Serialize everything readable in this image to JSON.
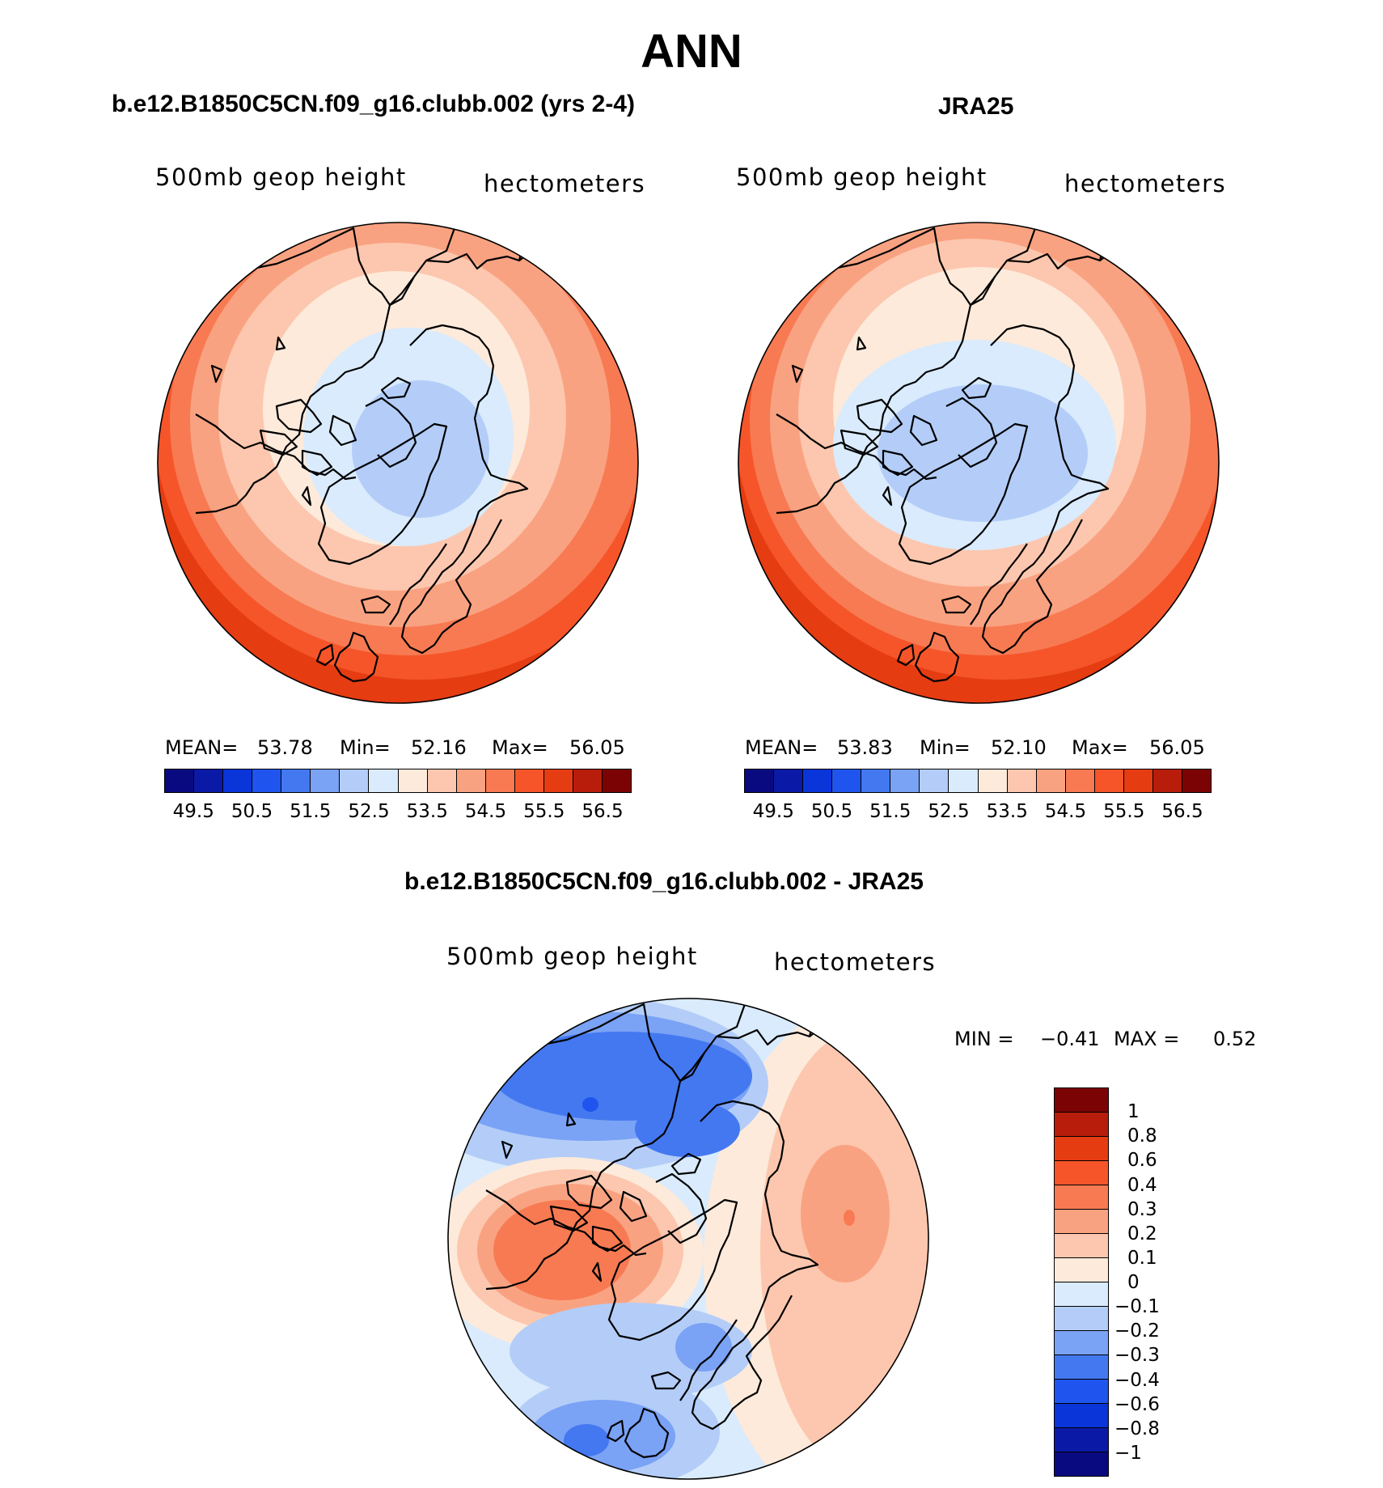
{
  "title": "ANN",
  "colors": {
    "abs_palette": [
      "#0a0a80",
      "#0b1aa6",
      "#0a35d9",
      "#1f55ee",
      "#4378f0",
      "#7aa2f5",
      "#b3cdf8",
      "#d9ebfc",
      "#fdeadb",
      "#fcc7ae",
      "#f9a281",
      "#f77a52",
      "#f6552a",
      "#e53c12",
      "#b81d0c",
      "#7c0303"
    ],
    "diff_palette": [
      "#7c0303",
      "#b81d0c",
      "#e53c12",
      "#f6552a",
      "#f77a52",
      "#f9a281",
      "#fcc7ae",
      "#fdeadb",
      "#d9ebfc",
      "#b3cdf8",
      "#7aa2f5",
      "#4378f0",
      "#1f55ee",
      "#0a35d9",
      "#0b1aa6",
      "#0a0a80"
    ]
  },
  "panels": {
    "model": {
      "title": "b.e12.B1850C5CN.f09_g16.clubb.002 (yrs 2-4)",
      "variable": "500mb geop height",
      "units": "hectometers",
      "mean_label": "MEAN=",
      "mean": "53.78",
      "min_label": "Min=",
      "min": "52.16",
      "max_label": "Max=",
      "max": "56.05",
      "ticks": [
        "49.5",
        "50.5",
        "51.5",
        "52.5",
        "53.5",
        "54.5",
        "55.5",
        "56.5"
      ]
    },
    "obs": {
      "title": "JRA25",
      "variable": "500mb geop height",
      "units": "hectometers",
      "mean_label": "MEAN=",
      "mean": "53.83",
      "min_label": "Min=",
      "min": "52.10",
      "max_label": "Max=",
      "max": "56.05",
      "ticks": [
        "49.5",
        "50.5",
        "51.5",
        "52.5",
        "53.5",
        "54.5",
        "55.5",
        "56.5"
      ]
    },
    "diff": {
      "title": "b.e12.B1850C5CN.f09_g16.clubb.002 - JRA25",
      "variable": "500mb geop height",
      "units": "hectometers",
      "min_label": "MIN =",
      "min": "−0.41",
      "max_label": "MAX =",
      "max": "0.52",
      "ticks": [
        "1",
        "0.8",
        "0.6",
        "0.4",
        "0.3",
        "0.2",
        "0.1",
        "0",
        "−0.1",
        "−0.2",
        "−0.3",
        "−0.4",
        "−0.6",
        "−0.8",
        "−1"
      ]
    }
  }
}
